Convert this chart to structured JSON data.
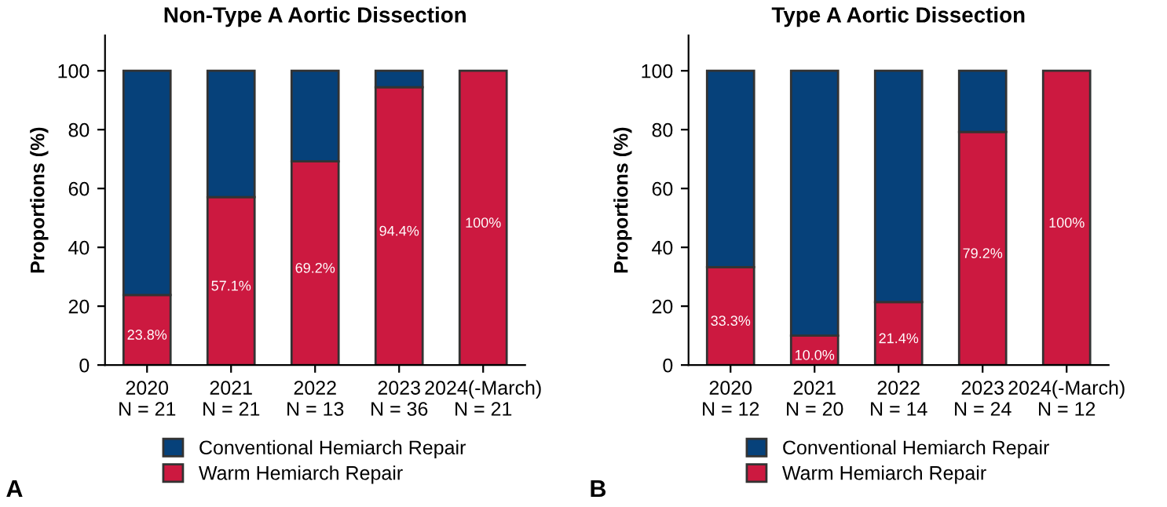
{
  "chart_data": [
    {
      "type": "bar",
      "title": "Non-Type A Aortic Dissection",
      "ylabel": "Proportions (%)",
      "stacked": true,
      "categories": [
        "2020\nN = 21",
        "2021\nN = 21",
        "2022\nN = 13",
        "2023\nN = 36",
        "2024(-March)\nN = 21"
      ],
      "series": [
        {
          "name": "Warm Hemiarch Repair",
          "color": "#cc1940",
          "values": [
            23.8,
            57.1,
            69.2,
            94.4,
            100
          ],
          "value_labels": [
            "23.8%",
            "57.1%",
            "69.2%",
            "94.4%",
            "100%"
          ]
        },
        {
          "name": "Conventional Hemiarch Repair",
          "color": "#06417a",
          "values": [
            76.2,
            42.9,
            30.8,
            5.6,
            0
          ]
        }
      ],
      "ylim": [
        0,
        112
      ],
      "yticks": [
        0,
        20,
        40,
        60,
        80,
        100
      ],
      "grid": false,
      "legend": "bottom",
      "annotations": [
        "A"
      ]
    },
    {
      "type": "bar",
      "title": "Type A Aortic Dissection",
      "ylabel": "Proportions (%)",
      "stacked": true,
      "categories": [
        "2020\nN = 12",
        "2021\nN = 20",
        "2022\nN = 14",
        "2023\nN = 24",
        "2024(-March)\nN = 12"
      ],
      "series": [
        {
          "name": "Warm Hemiarch Repair",
          "color": "#cc1940",
          "values": [
            33.3,
            10.0,
            21.4,
            79.2,
            100
          ],
          "value_labels": [
            "33.3%",
            "10.0%",
            "21.4%",
            "79.2%",
            "100%"
          ]
        },
        {
          "name": "Conventional Hemiarch Repair",
          "color": "#06417a",
          "values": [
            66.7,
            90.0,
            78.6,
            20.8,
            0
          ]
        }
      ],
      "ylim": [
        0,
        112
      ],
      "yticks": [
        0,
        20,
        40,
        60,
        80,
        100
      ],
      "grid": false,
      "legend": "bottom",
      "annotations": [
        "B"
      ]
    }
  ]
}
